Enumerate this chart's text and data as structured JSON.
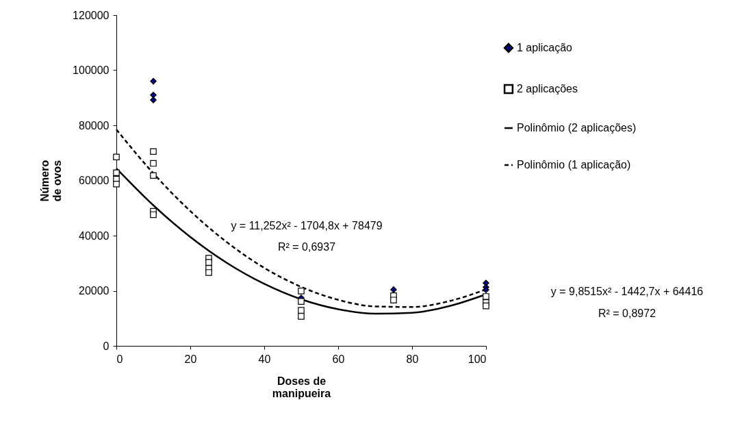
{
  "chart_data": {
    "type": "scatter",
    "xlabel": "Doses de\nmanipueira",
    "ylabel": "Número\nde ovos",
    "xlim": [
      0,
      100
    ],
    "ylim": [
      0,
      120000
    ],
    "xticks": [
      0,
      20,
      40,
      60,
      80,
      100
    ],
    "yticks": [
      0,
      20000,
      40000,
      60000,
      80000,
      100000,
      120000
    ],
    "grid": false,
    "legend": "right",
    "series": [
      {
        "name": "1 aplicação",
        "marker": "diamond",
        "color": "#000080",
        "x": [
          10,
          10,
          10,
          50,
          75,
          100,
          100,
          100
        ],
        "values": [
          96000,
          91000,
          89200,
          17400,
          20400,
          22800,
          21300,
          20300
        ]
      },
      {
        "name": "2 aplicações",
        "marker": "square",
        "color": "#ffffff",
        "x": [
          0,
          0,
          0,
          0,
          10,
          10,
          10,
          10,
          10,
          25,
          25,
          25,
          25,
          50,
          50,
          50,
          50,
          75,
          75,
          100,
          100,
          100
        ],
        "values": [
          68500,
          62800,
          60500,
          58700,
          70500,
          66200,
          61800,
          48800,
          47600,
          31800,
          30300,
          28100,
          26600,
          19900,
          16100,
          12900,
          10700,
          18200,
          16600,
          17900,
          15700,
          14500
        ]
      },
      {
        "name": "Polinômio (2 aplicações)",
        "type": "line",
        "line_style": "solid",
        "color": "#000000",
        "x": [
          0,
          10,
          20,
          30,
          40,
          50,
          60,
          70,
          80,
          90,
          100
        ],
        "values": [
          64400,
          51000,
          39500,
          30000,
          22500,
          16900,
          13300,
          11700,
          12000,
          14400,
          18700
        ]
      },
      {
        "name": "Polinômio (1 aplicação)",
        "type": "line",
        "line_style": "dashed",
        "color": "#000000",
        "x": [
          0,
          10,
          20,
          30,
          40,
          50,
          60,
          70,
          80,
          90,
          100
        ],
        "values": [
          78500,
          62600,
          48900,
          37500,
          28300,
          21400,
          16700,
          14300,
          14100,
          16200,
          20500
        ]
      }
    ],
    "annotations": [
      "y = 11,252x² - 1704,8x + 78479",
      "R² = 0,6937",
      "y = 9,8515x² - 1442,7x + 64416",
      "R² = 0,8972"
    ]
  }
}
